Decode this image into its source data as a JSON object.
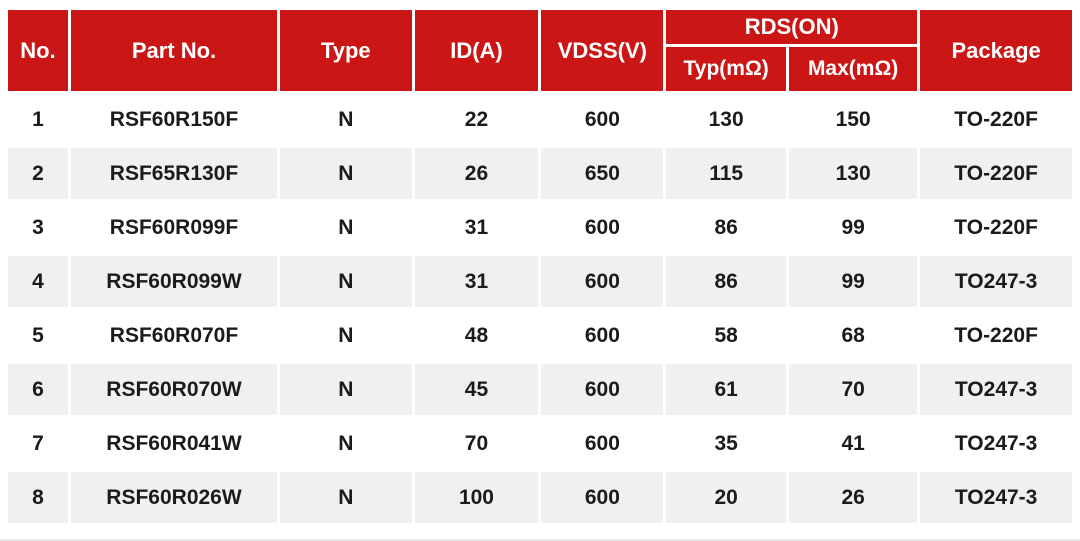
{
  "colors": {
    "header_bg": "#cb1616",
    "header_text": "#ffffff",
    "row_alt_bg": "#f0f0f0",
    "body_text": "#1b1b1b"
  },
  "table": {
    "header": {
      "no": "No.",
      "part": "Part No.",
      "type": "Type",
      "id": "ID(A)",
      "vdss": "VDSS(V)",
      "rds_group": "RDS(ON)",
      "typ": "Typ(mΩ)",
      "max": "Max(mΩ)",
      "package": "Package"
    },
    "rows": [
      {
        "no": "1",
        "part": "RSF60R150F",
        "type": "N",
        "id": "22",
        "vdss": "600",
        "typ": "130",
        "max": "150",
        "package": "TO-220F"
      },
      {
        "no": "2",
        "part": "RSF65R130F",
        "type": "N",
        "id": "26",
        "vdss": "650",
        "typ": "115",
        "max": "130",
        "package": "TO-220F"
      },
      {
        "no": "3",
        "part": "RSF60R099F",
        "type": "N",
        "id": "31",
        "vdss": "600",
        "typ": "86",
        "max": "99",
        "package": "TO-220F"
      },
      {
        "no": "4",
        "part": "RSF60R099W",
        "type": "N",
        "id": "31",
        "vdss": "600",
        "typ": "86",
        "max": "99",
        "package": "TO247-3"
      },
      {
        "no": "5",
        "part": "RSF60R070F",
        "type": "N",
        "id": "48",
        "vdss": "600",
        "typ": "58",
        "max": "68",
        "package": "TO-220F"
      },
      {
        "no": "6",
        "part": "RSF60R070W",
        "type": "N",
        "id": "45",
        "vdss": "600",
        "typ": "61",
        "max": "70",
        "package": "TO247-3"
      },
      {
        "no": "7",
        "part": "RSF60R041W",
        "type": "N",
        "id": "70",
        "vdss": "600",
        "typ": "35",
        "max": "41",
        "package": "TO247-3"
      },
      {
        "no": "8",
        "part": "RSF60R026W",
        "type": "N",
        "id": "100",
        "vdss": "600",
        "typ": "20",
        "max": "26",
        "package": "TO247-3"
      }
    ]
  },
  "chart_data": {
    "type": "table",
    "title": "",
    "columns": [
      "No.",
      "Part No.",
      "Type",
      "ID(A)",
      "VDSS(V)",
      "RDS(ON) Typ(mΩ)",
      "RDS(ON) Max(mΩ)",
      "Package"
    ],
    "rows": [
      [
        "1",
        "RSF60R150F",
        "N",
        22,
        600,
        130,
        150,
        "TO-220F"
      ],
      [
        "2",
        "RSF65R130F",
        "N",
        26,
        650,
        115,
        130,
        "TO-220F"
      ],
      [
        "3",
        "RSF60R099F",
        "N",
        31,
        600,
        86,
        99,
        "TO-220F"
      ],
      [
        "4",
        "RSF60R099W",
        "N",
        31,
        600,
        86,
        99,
        "TO247-3"
      ],
      [
        "5",
        "RSF60R070F",
        "N",
        48,
        600,
        58,
        68,
        "TO-220F"
      ],
      [
        "6",
        "RSF60R070W",
        "N",
        45,
        600,
        61,
        70,
        "TO247-3"
      ],
      [
        "7",
        "RSF60R041W",
        "N",
        70,
        600,
        35,
        41,
        "TO247-3"
      ],
      [
        "8",
        "RSF60R026W",
        "N",
        100,
        600,
        20,
        26,
        "TO247-3"
      ]
    ]
  }
}
